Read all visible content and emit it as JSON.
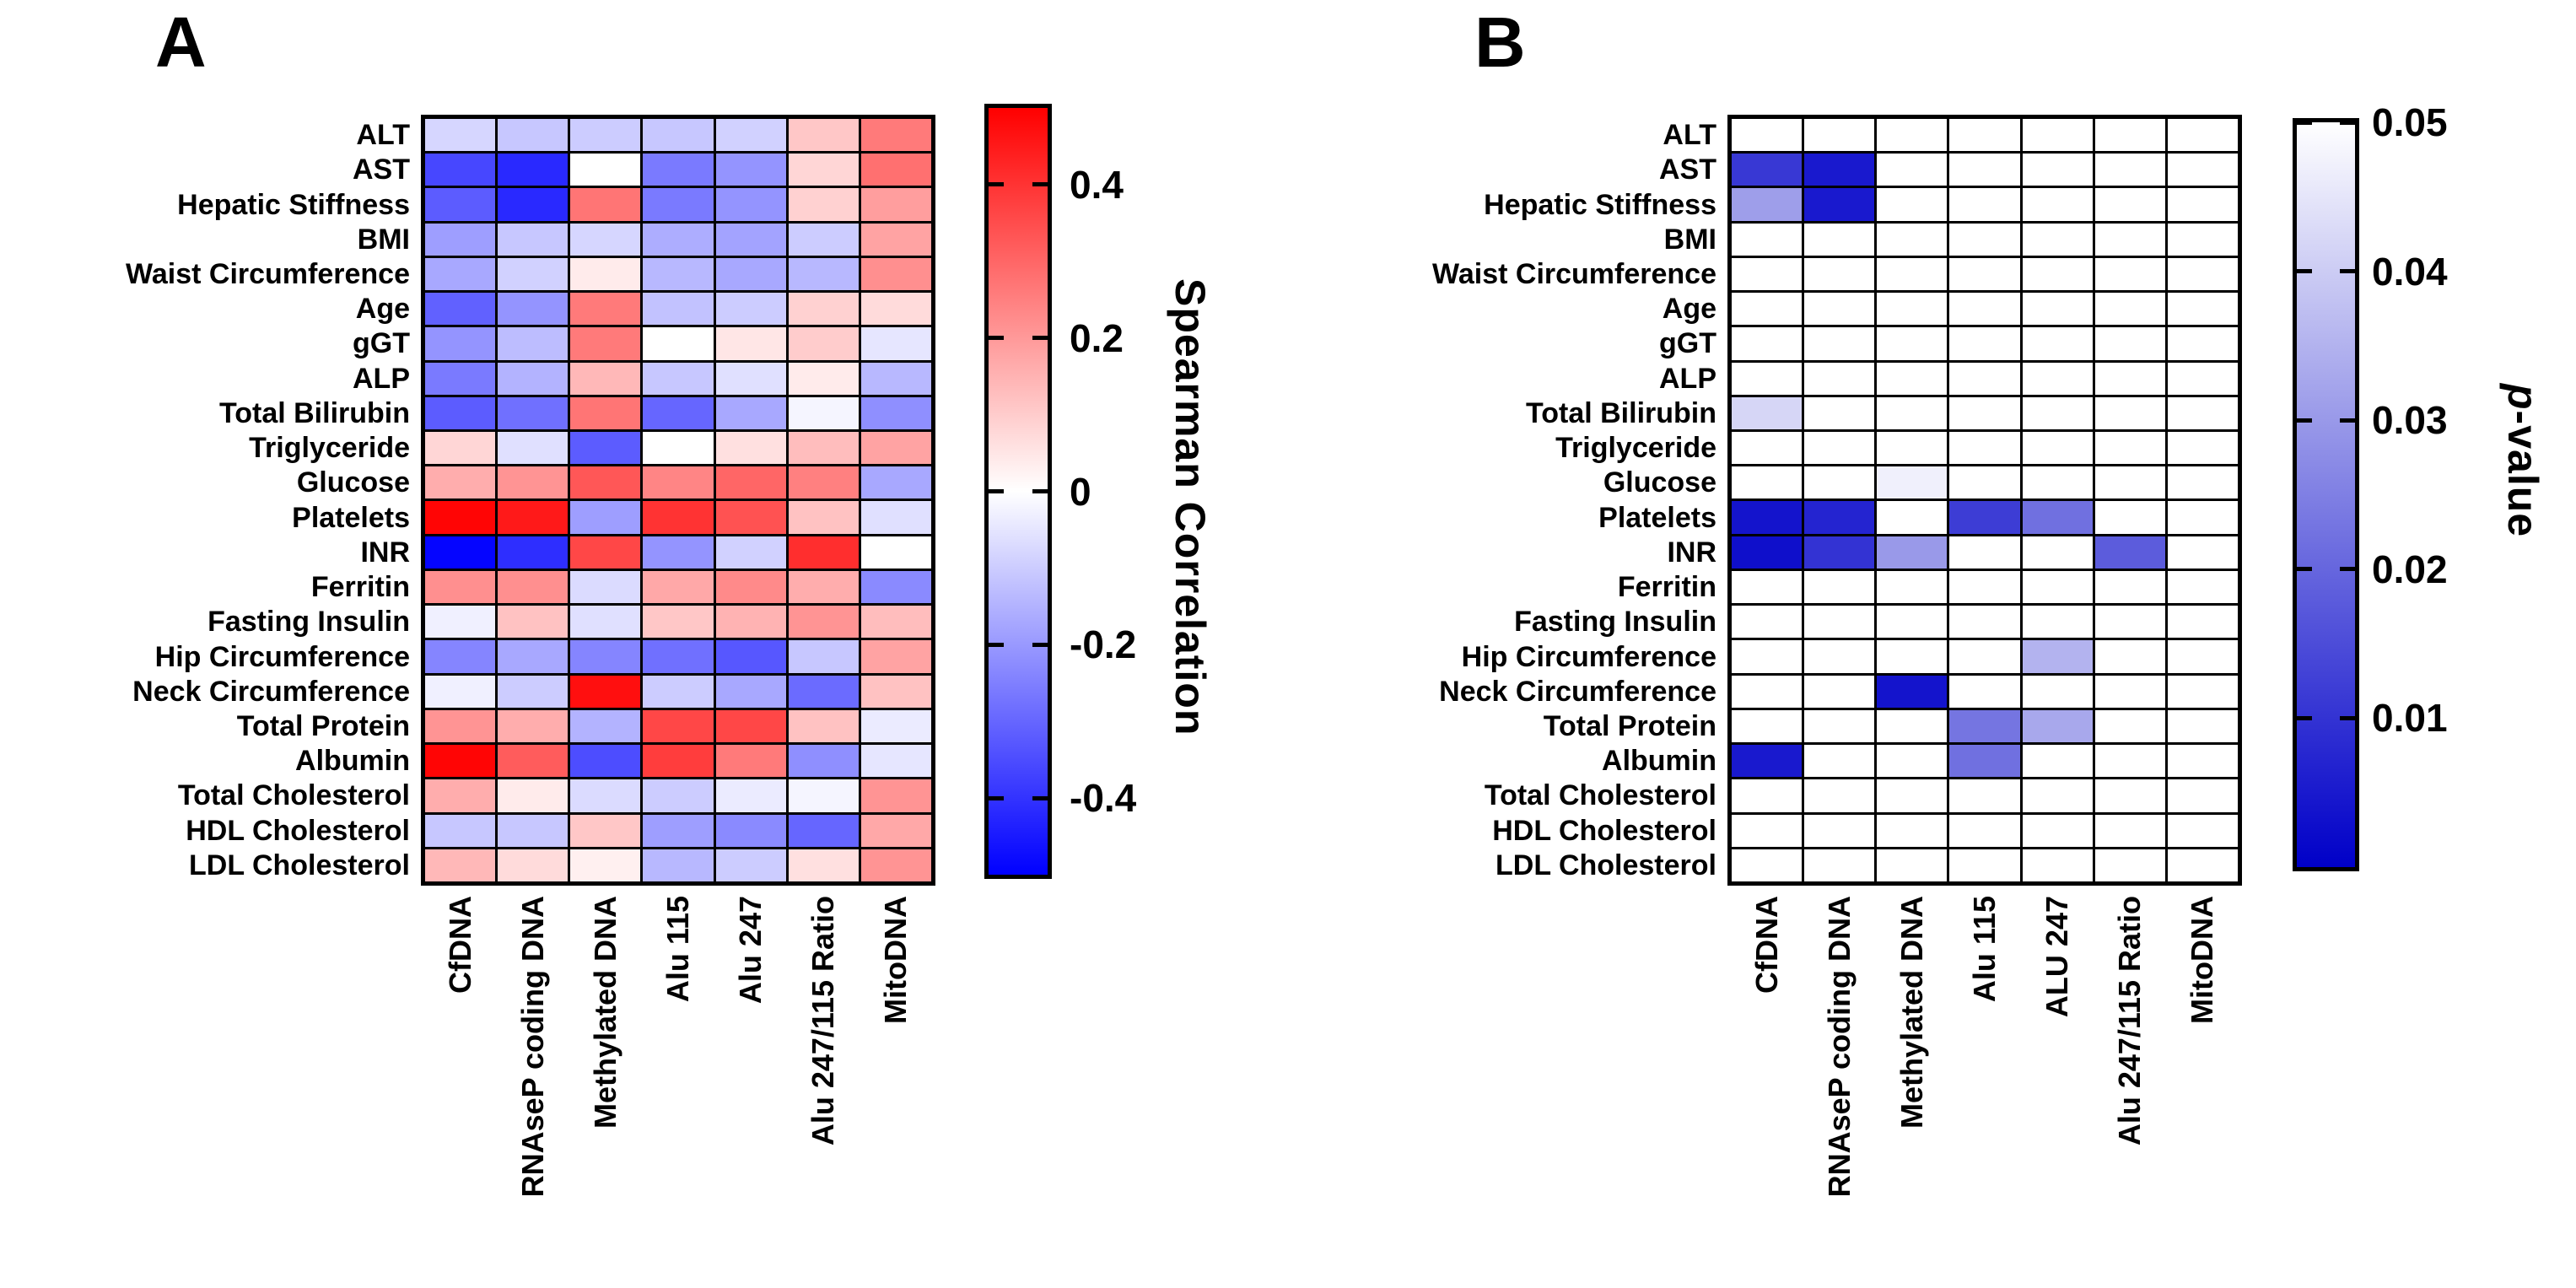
{
  "chart_data": [
    {
      "type": "heatmap",
      "panel_label": "A",
      "rows": [
        "ALT",
        "AST",
        "Hepatic Stiffness",
        "BMI",
        "Waist Circumference",
        "Age",
        "gGT",
        "ALP",
        "Total Bilirubin",
        "Triglyceride",
        "Glucose",
        "Platelets",
        "INR",
        "Ferritin",
        "Fasting Insulin",
        "Hip Circumference",
        "Neck Circumference",
        "Total Protein",
        "Albumin",
        "Total Cholesterol",
        "HDL Cholesterol",
        "LDL Cholesterol"
      ],
      "columns": [
        "CfDNA",
        "RNAseP coding DNA",
        "Methylated DNA",
        "Alu 115",
        "Alu 247",
        "Alu 247/115 Ratio",
        "MitoDNA"
      ],
      "values": [
        [
          -0.08,
          -0.11,
          -0.1,
          -0.11,
          -0.09,
          0.11,
          0.26
        ],
        [
          -0.36,
          -0.42,
          0.0,
          -0.26,
          -0.21,
          0.08,
          0.28
        ],
        [
          -0.32,
          -0.42,
          0.27,
          -0.26,
          -0.21,
          0.09,
          0.19
        ],
        [
          -0.19,
          -0.11,
          -0.08,
          -0.16,
          -0.18,
          -0.1,
          0.18
        ],
        [
          -0.17,
          -0.09,
          0.04,
          -0.14,
          -0.17,
          -0.14,
          0.22
        ],
        [
          -0.31,
          -0.21,
          0.26,
          -0.12,
          -0.1,
          0.09,
          0.07
        ],
        [
          -0.21,
          -0.13,
          0.26,
          0.0,
          0.05,
          0.1,
          -0.05
        ],
        [
          -0.26,
          -0.15,
          0.14,
          -0.11,
          -0.06,
          0.04,
          -0.14
        ],
        [
          -0.32,
          -0.28,
          0.27,
          -0.3,
          -0.17,
          -0.02,
          -0.22
        ],
        [
          0.08,
          -0.06,
          -0.32,
          0.0,
          0.06,
          0.13,
          0.18
        ],
        [
          0.16,
          0.21,
          0.33,
          0.24,
          0.3,
          0.25,
          -0.17
        ],
        [
          0.49,
          0.45,
          -0.19,
          0.4,
          0.34,
          0.12,
          -0.06
        ],
        [
          -0.49,
          -0.41,
          0.36,
          -0.21,
          -0.09,
          0.41,
          0.0
        ],
        [
          0.22,
          0.22,
          -0.07,
          0.17,
          0.23,
          0.16,
          -0.23
        ],
        [
          -0.03,
          0.12,
          -0.06,
          0.11,
          0.15,
          0.21,
          0.13
        ],
        [
          -0.24,
          -0.17,
          -0.24,
          -0.28,
          -0.33,
          -0.11,
          0.18
        ],
        [
          -0.03,
          -0.1,
          0.47,
          -0.1,
          -0.17,
          -0.29,
          0.12
        ],
        [
          0.21,
          0.16,
          -0.15,
          0.36,
          0.36,
          0.12,
          -0.04
        ],
        [
          0.49,
          0.32,
          -0.35,
          0.38,
          0.26,
          -0.22,
          -0.05
        ],
        [
          0.16,
          0.04,
          -0.07,
          -0.1,
          -0.04,
          -0.02,
          0.21
        ],
        [
          -0.11,
          -0.11,
          0.11,
          -0.19,
          -0.23,
          -0.3,
          0.17
        ],
        [
          0.14,
          0.07,
          0.03,
          -0.14,
          -0.1,
          0.06,
          0.21
        ]
      ],
      "colorbar": {
        "title": "Spearman Correlation",
        "tick_labels": [
          "0.4",
          "0.2",
          "0",
          "-0.2",
          "-0.4"
        ],
        "vmax": 0.5,
        "vmin": -0.5,
        "colormap": "red-white-blue",
        "color_positive": "#ff0000",
        "color_zero": "#ffffff",
        "color_negative": "#0000ff"
      }
    },
    {
      "type": "heatmap",
      "panel_label": "B",
      "rows": [
        "ALT",
        "AST",
        "Hepatic Stiffness",
        "BMI",
        "Waist Circumference",
        "Age",
        "gGT",
        "ALP",
        "Total Bilirubin",
        "Triglyceride",
        "Glucose",
        "Platelets",
        "INR",
        "Ferritin",
        "Fasting Insulin",
        "Hip Circumference",
        "Neck Circumference",
        "Total Protein",
        "Albumin",
        "Total Cholesterol",
        "HDL Cholesterol",
        "LDL Cholesterol"
      ],
      "columns": [
        "CfDNA",
        "RNAseP coding DNA",
        "Methylated DNA",
        "Alu 115",
        "ALU 247",
        "Alu 247/115 Ratio",
        "MitoDNA"
      ],
      "values": [
        [
          null,
          null,
          null,
          null,
          null,
          null,
          null
        ],
        [
          0.011,
          0.005,
          null,
          null,
          null,
          null,
          null
        ],
        [
          0.031,
          0.005,
          null,
          null,
          null,
          null,
          null
        ],
        [
          null,
          null,
          null,
          null,
          null,
          null,
          null
        ],
        [
          null,
          null,
          null,
          null,
          null,
          null,
          null
        ],
        [
          null,
          null,
          null,
          null,
          null,
          null,
          null
        ],
        [
          null,
          null,
          null,
          null,
          null,
          null,
          null
        ],
        [
          null,
          null,
          null,
          null,
          null,
          null,
          null
        ],
        [
          0.042,
          null,
          null,
          null,
          null,
          null,
          null
        ],
        [
          null,
          null,
          null,
          null,
          null,
          null,
          null
        ],
        [
          null,
          null,
          0.047,
          null,
          null,
          null,
          null
        ],
        [
          0.004,
          0.007,
          null,
          0.012,
          0.022,
          null,
          null
        ],
        [
          0.003,
          0.01,
          0.03,
          null,
          null,
          0.018,
          null
        ],
        [
          null,
          null,
          null,
          null,
          null,
          null,
          null
        ],
        [
          null,
          null,
          null,
          null,
          null,
          null,
          null
        ],
        [
          null,
          null,
          null,
          null,
          0.035,
          null,
          null
        ],
        [
          null,
          null,
          0.004,
          null,
          null,
          null,
          null
        ],
        [
          null,
          null,
          null,
          0.023,
          0.033,
          null,
          null
        ],
        [
          0.005,
          null,
          null,
          0.022,
          null,
          null,
          null
        ],
        [
          null,
          null,
          null,
          null,
          null,
          null,
          null
        ],
        [
          null,
          null,
          null,
          null,
          null,
          null,
          null
        ],
        [
          null,
          null,
          null,
          null,
          null,
          null,
          null
        ]
      ],
      "colorbar": {
        "title": "p-value",
        "italic_first_letter": true,
        "tick_labels": [
          "0.05",
          "0.04",
          "0.03",
          "0.02",
          "0.01"
        ],
        "vmax": 0.05,
        "vmin": 0,
        "colormap": "white-blue",
        "color_high": "#ffffff",
        "color_low": "#0000c8",
        "not_significant_color": "#ffffff"
      }
    }
  ]
}
